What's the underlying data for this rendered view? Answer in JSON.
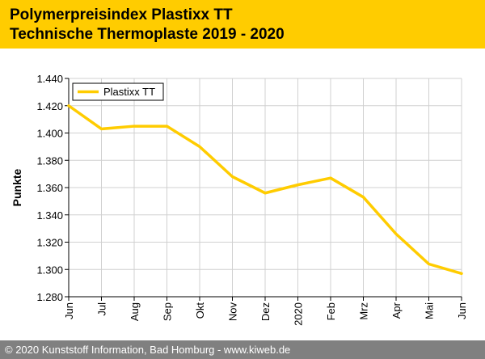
{
  "header": {
    "title_line1": "Polymerpreisindex Plastixx TT",
    "title_line2": "Technische Thermoplaste 2019 - 2020"
  },
  "footer": {
    "text": "© 2020 Kunststoff Information, Bad Homburg - www.kiweb.de"
  },
  "colors": {
    "brand": "#ffcc00",
    "series": "#ffcc00",
    "footer_bg": "#808080",
    "grid": "#d0d0d0"
  },
  "chart_data": {
    "type": "line",
    "title": "",
    "xlabel": "",
    "ylabel": "Punkte",
    "categories": [
      "Jun",
      "Jul",
      "Aug",
      "Sep",
      "Okt",
      "Nov",
      "Dez",
      "2020",
      "Feb",
      "Mrz",
      "Apr",
      "Mai",
      "Jun"
    ],
    "series": [
      {
        "name": "Plastixx TT",
        "values": [
          1.42,
          1.403,
          1.405,
          1.405,
          1.39,
          1.368,
          1.356,
          1.362,
          1.367,
          1.353,
          1.326,
          1.304,
          1.297
        ]
      }
    ],
    "ylim": [
      1.28,
      1.44
    ],
    "yticks": [
      1.28,
      1.3,
      1.32,
      1.34,
      1.36,
      1.38,
      1.4,
      1.42,
      1.44
    ],
    "ytick_labels": [
      "1.280",
      "1.300",
      "1.320",
      "1.340",
      "1.360",
      "1.380",
      "1.400",
      "1.420",
      "1.440"
    ],
    "grid": true,
    "legend_position": "top-left"
  }
}
